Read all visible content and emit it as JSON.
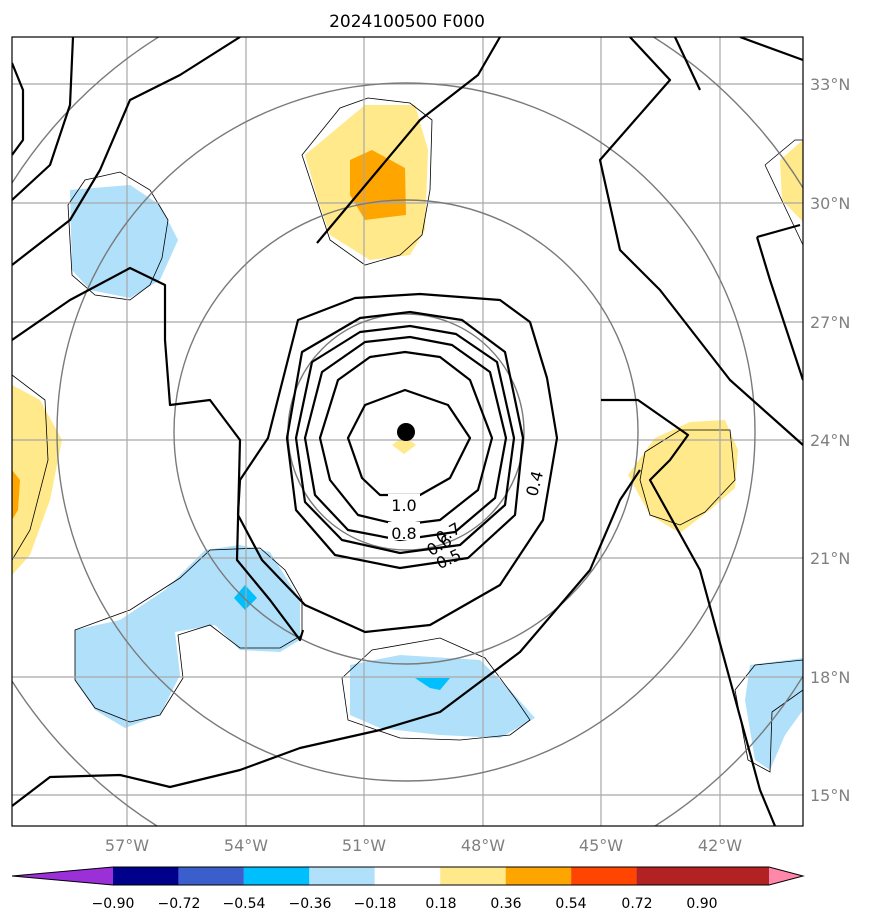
{
  "title": "2024100500 F000",
  "lon_labels": [
    "57°W",
    "54°W",
    "51°W",
    "48°W",
    "45°W",
    "42°W"
  ],
  "lat_labels": [
    "33°N",
    "30°N",
    "27°N",
    "24°N",
    "21°N",
    "18°N",
    "15°N"
  ],
  "colorbar": {
    "ticks": [
      "−0.90",
      "−0.72",
      "−0.54",
      "−0.36",
      "−0.18",
      "0.18",
      "0.36",
      "0.54",
      "0.72",
      "0.90"
    ],
    "colors": [
      "#9b30d9",
      "#00008b",
      "#3a5fcd",
      "#00bfff",
      "#b0e0fa",
      "#ffffff",
      "#ffe98a",
      "#ffa500",
      "#ff4500",
      "#b22222",
      "#ff88aa"
    ]
  },
  "contour_labels": [
    "1.0",
    "0.8",
    "0.7",
    "0.6",
    "0.5",
    "0.4"
  ],
  "shade_colors": {
    "light_blue": "#b0e0fa",
    "blue": "#00bfff",
    "light_yellow": "#ffe98a",
    "orange": "#ffa500"
  },
  "center_marker_color": "#000000"
}
